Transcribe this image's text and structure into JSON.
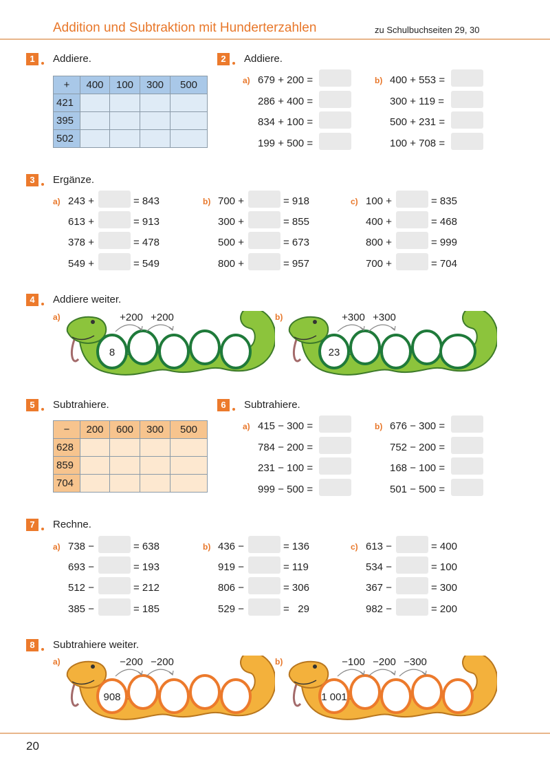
{
  "header": {
    "title": "Addition und Subtraktion mit Hunderterzahlen",
    "reference": "zu Schulbuchseiten 29, 30"
  },
  "footer": {
    "page_number": "20"
  },
  "colors": {
    "accent": "#ec7a2c",
    "add_table": "#a9c8e8",
    "sub_table": "#f7c48e",
    "answer_box": "#e9e9e9",
    "snake_green": "#8cc43c",
    "snake_orange": "#f3b13c"
  },
  "exercises": {
    "e1": {
      "number": "1",
      "instruction": "Addiere.",
      "table": {
        "operator": "+",
        "columns": [
          "400",
          "100",
          "300",
          "500"
        ],
        "rows": [
          "421",
          "395",
          "502"
        ]
      }
    },
    "e2": {
      "number": "2",
      "instruction": "Addiere.",
      "parts": [
        {
          "label": "a)",
          "items": [
            "679 + 200 =",
            "286 + 400 =",
            "834 + 100 =",
            "199 + 500 ="
          ]
        },
        {
          "label": "b)",
          "items": [
            "400 + 553 =",
            "300 + 119 =",
            "500 + 231 =",
            "100 + 708 ="
          ]
        }
      ]
    },
    "e3": {
      "number": "3",
      "instruction": "Ergänze.",
      "parts": [
        {
          "label": "a)",
          "items": [
            [
              "243 +",
              "= 843"
            ],
            [
              "613 +",
              "= 913"
            ],
            [
              "378 +",
              "= 478"
            ],
            [
              "549 +",
              "= 549"
            ]
          ]
        },
        {
          "label": "b)",
          "items": [
            [
              "700 +",
              "= 918"
            ],
            [
              "300 +",
              "= 855"
            ],
            [
              "500 +",
              "= 673"
            ],
            [
              "800 +",
              "= 957"
            ]
          ]
        },
        {
          "label": "c)",
          "items": [
            [
              "100 +",
              "= 835"
            ],
            [
              "400 +",
              "= 468"
            ],
            [
              "800 +",
              "= 999"
            ],
            [
              "700 +",
              "= 704"
            ]
          ]
        }
      ]
    },
    "e4": {
      "number": "4",
      "instruction": "Addiere weiter.",
      "snakes": [
        {
          "label": "a)",
          "start": "8",
          "steps": [
            "+200",
            "+200"
          ]
        },
        {
          "label": "b)",
          "start": "23",
          "steps": [
            "+300",
            "+300"
          ]
        }
      ]
    },
    "e5": {
      "number": "5",
      "instruction": "Subtrahiere.",
      "table": {
        "operator": "−",
        "columns": [
          "200",
          "600",
          "300",
          "500"
        ],
        "rows": [
          "628",
          "859",
          "704"
        ]
      }
    },
    "e6": {
      "number": "6",
      "instruction": "Subtrahiere.",
      "parts": [
        {
          "label": "a)",
          "items": [
            "415 − 300 =",
            "784 − 200 =",
            "231 − 100 =",
            "999 − 500 ="
          ]
        },
        {
          "label": "b)",
          "items": [
            "676 − 300 =",
            "752 − 200 =",
            "168 − 100 =",
            "501 − 500 ="
          ]
        }
      ]
    },
    "e7": {
      "number": "7",
      "instruction": "Rechne.",
      "parts": [
        {
          "label": "a)",
          "items": [
            [
              "738 −",
              "= 638"
            ],
            [
              "693 −",
              "= 193"
            ],
            [
              "512 −",
              "= 212"
            ],
            [
              "385 −",
              "= 185"
            ]
          ]
        },
        {
          "label": "b)",
          "items": [
            [
              "436 −",
              "= 136"
            ],
            [
              "919 −",
              "= 119"
            ],
            [
              "806 −",
              "= 306"
            ],
            [
              "529 −",
              "=   29"
            ]
          ]
        },
        {
          "label": "c)",
          "items": [
            [
              "613 −",
              "= 400"
            ],
            [
              "534 −",
              "= 100"
            ],
            [
              "367 −",
              "= 300"
            ],
            [
              "982 −",
              "= 200"
            ]
          ]
        }
      ]
    },
    "e8": {
      "number": "8",
      "instruction": "Subtrahiere weiter.",
      "snakes": [
        {
          "label": "a)",
          "start": "908",
          "steps": [
            "−200",
            "−200"
          ]
        },
        {
          "label": "b)",
          "start": "1 001",
          "steps": [
            "−100",
            "−200",
            "−300"
          ]
        }
      ]
    }
  }
}
